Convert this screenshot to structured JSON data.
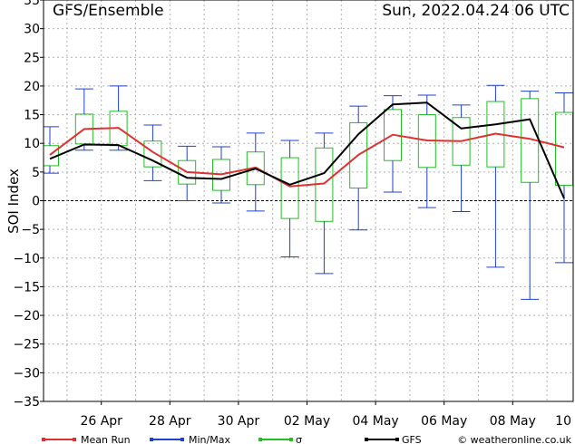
{
  "header": {
    "title_left": "GFS/Ensemble",
    "title_right": "Sun, 2022.04.24   06 UTC"
  },
  "footer": {
    "copyright": "© weatheronline.co.uk"
  },
  "legend": {
    "mean_run": "Mean Run",
    "minmax": "Min/Max",
    "sigma": "σ",
    "gfs": "GFS"
  },
  "colors": {
    "mean": "#e03030",
    "minmax": "#2040d0",
    "sigma": "#20c020",
    "gfs": "#000000",
    "grid": "#b0b0b0"
  },
  "chart_data": {
    "type": "line",
    "ylabel": "SOI Index",
    "ylim": [
      -35,
      35
    ],
    "yticks": [
      35,
      30,
      25,
      20,
      15,
      10,
      5,
      0,
      -5,
      -10,
      -15,
      -20,
      -25,
      -30,
      -35
    ],
    "xlabels": [
      "26 Apr",
      "28 Apr",
      "30 Apr",
      "02 May",
      "04 May",
      "06 May",
      "08 May",
      "10"
    ],
    "x_label_days": [
      1.5,
      3.5,
      5.5,
      7.5,
      9.5,
      11.5,
      13.5,
      15.5
    ],
    "days": [
      0,
      1,
      2,
      3,
      4,
      5,
      6,
      7,
      8,
      9,
      10,
      11,
      12,
      13,
      14,
      15
    ],
    "mean_run": [
      8,
      12.5,
      12.7,
      8.5,
      5,
      4.6,
      5.8,
      2.5,
      3,
      8,
      11.5,
      10.5,
      10.4,
      11.7,
      10.8,
      9.3
    ],
    "gfs": [
      7.3,
      9.8,
      9.7,
      7,
      4,
      3.8,
      5.6,
      2.8,
      4.8,
      11.6,
      16.8,
      17.1,
      12.6,
      13.3,
      14.2,
      0.4
    ],
    "min": [
      4.8,
      8.8,
      8.8,
      3.5,
      0,
      -0.4,
      -1.8,
      -9.8,
      -12.7,
      -5.1,
      1.5,
      -1.2,
      -1.9,
      -11.6,
      -17.2,
      -10.8
    ],
    "max": [
      12.9,
      19.5,
      20,
      13.2,
      9.5,
      9.4,
      11.8,
      10.5,
      11.8,
      16.5,
      18.3,
      18.4,
      16.7,
      20.1,
      19.1,
      18.8
    ],
    "sigma_low": [
      6.1,
      9.9,
      9.6,
      5.9,
      2.9,
      1.8,
      2.8,
      -3.1,
      -3.6,
      2.2,
      7.0,
      5.8,
      6.2,
      5.9,
      3.2,
      2.7
    ],
    "sigma_high": [
      9.6,
      15.1,
      15.6,
      10.4,
      7.0,
      7.2,
      8.5,
      7.5,
      9.2,
      13.6,
      15.9,
      15.0,
      14.5,
      17.3,
      17.8,
      15.4
    ],
    "grid": true,
    "legend_position": "bottom"
  }
}
